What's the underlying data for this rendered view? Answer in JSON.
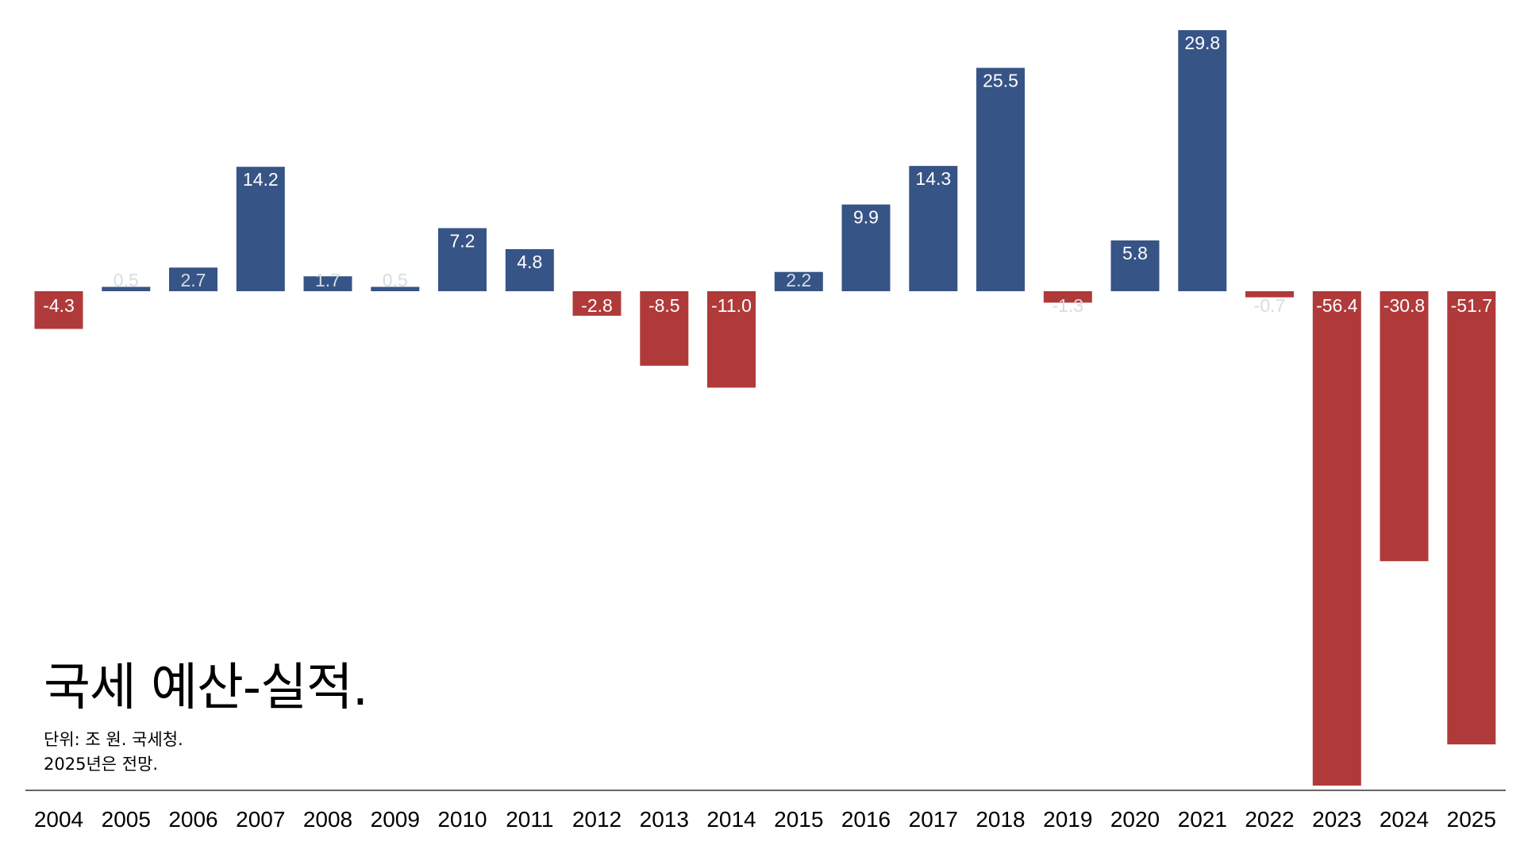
{
  "chart_data": {
    "type": "bar",
    "title": "국세 예산-실적.",
    "notes": [
      "단위: 조 원. 국세청.",
      "2025년은 전망."
    ],
    "categories": [
      "2004",
      "2005",
      "2006",
      "2007",
      "2008",
      "2009",
      "2010",
      "2011",
      "2012",
      "2013",
      "2014",
      "2015",
      "2016",
      "2017",
      "2018",
      "2019",
      "2020",
      "2021",
      "2022",
      "2023",
      "2024",
      "2025"
    ],
    "values": [
      -4.3,
      0.5,
      2.7,
      14.2,
      1.7,
      0.5,
      7.2,
      4.8,
      -2.8,
      -8.5,
      -11.0,
      2.2,
      9.9,
      14.3,
      25.5,
      -1.3,
      5.8,
      29.8,
      -0.7,
      -56.4,
      -30.8,
      -51.7
    ],
    "labels": [
      "-4.3",
      "0.5",
      "2.7",
      "14.2",
      "1.7",
      "0.5",
      "7.2",
      "4.8",
      "-2.8",
      "-8.5",
      "-11.0",
      "2.2",
      "9.9",
      "14.3",
      "25.5",
      "-1.3",
      "5.8",
      "29.8",
      "-0.7",
      "-56.4",
      "-30.8",
      "-51.7"
    ],
    "ylim": [
      -56.4,
      29.8
    ],
    "xlabel": "",
    "ylabel": "",
    "grid": false,
    "colors": {
      "positive": "#375486",
      "negative": "#B03A3A",
      "label_light": "#FFFFFF",
      "label_faint": "#D8DCE4",
      "axis": "#333333"
    }
  }
}
